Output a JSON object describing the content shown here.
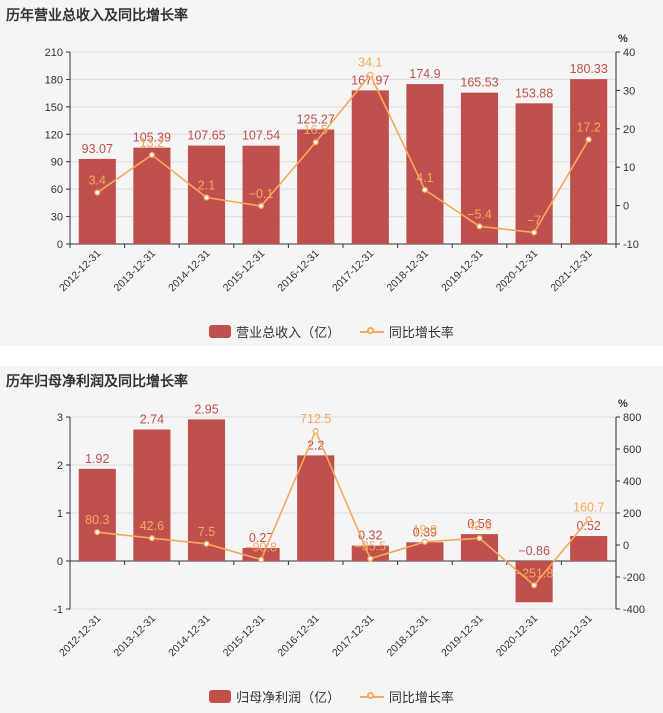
{
  "colors": {
    "bar": "#c0504d",
    "line": "#f5a95b",
    "axis": "#333333",
    "grid": "#dddddd",
    "background": "#f5f5f5"
  },
  "chart_data": [
    {
      "type": "bar",
      "title": "历年营业总收入及同比增长率",
      "categories": [
        "2012-12-31",
        "2013-12-31",
        "2014-12-31",
        "2015-12-31",
        "2016-12-31",
        "2017-12-31",
        "2018-12-31",
        "2019-12-31",
        "2020-12-31",
        "2021-12-31"
      ],
      "series": [
        {
          "name": "营业总收入（亿）",
          "type": "bar",
          "axis": "left",
          "values": [
            93.07,
            105.39,
            107.65,
            107.54,
            125.27,
            167.97,
            174.9,
            165.53,
            153.88,
            180.33
          ],
          "labels": [
            "93.07",
            "105.39",
            "107.65",
            "107.54",
            "125.27",
            "167.97",
            "174.9",
            "165.53",
            "153.88",
            "180.33"
          ]
        },
        {
          "name": "同比增长率",
          "type": "line",
          "axis": "right",
          "values": [
            3.4,
            13.2,
            2.1,
            -0.1,
            16.5,
            34.1,
            4.1,
            -5.4,
            -7,
            17.2
          ],
          "labels": [
            "3.4",
            "13.2",
            "2.1",
            "−0.1",
            "16.5",
            "34.1",
            "4.1",
            "−5.4",
            "−7",
            "17.2"
          ]
        }
      ],
      "y_left": {
        "min": 0,
        "max": 210,
        "ticks": [
          0,
          30,
          60,
          90,
          120,
          150,
          180,
          210
        ]
      },
      "y_right": {
        "min": -10,
        "max": 40,
        "ticks": [
          -10,
          0,
          10,
          20,
          30,
          40
        ],
        "unit": "%"
      },
      "grid": true,
      "legend": "bottom-center"
    },
    {
      "type": "bar",
      "title": "历年归母净利润及同比增长率",
      "categories": [
        "2012-12-31",
        "2013-12-31",
        "2014-12-31",
        "2015-12-31",
        "2016-12-31",
        "2017-12-31",
        "2018-12-31",
        "2019-12-31",
        "2020-12-31",
        "2021-12-31"
      ],
      "series": [
        {
          "name": "归母净利润（亿）",
          "type": "bar",
          "axis": "left",
          "values": [
            1.92,
            2.74,
            2.95,
            0.27,
            2.2,
            0.32,
            0.39,
            0.56,
            -0.86,
            0.52
          ],
          "labels": [
            "1.92",
            "2.74",
            "2.95",
            "0.27",
            "2.2",
            "0.32",
            "0.39",
            "0.56",
            "−0.86",
            "0.52"
          ]
        },
        {
          "name": "同比增长率",
          "type": "line",
          "axis": "right",
          "values": [
            80.3,
            42.6,
            7.5,
            -90.8,
            712.5,
            -85.5,
            19.8,
            42.6,
            -251.8,
            160.7
          ],
          "labels": [
            "80.3",
            "42.6",
            "7.5",
            "−90.8",
            "712.5",
            "−85.5",
            "19.8",
            "42.6",
            "−251.8",
            "160.7"
          ]
        }
      ],
      "y_left": {
        "min": -1,
        "max": 3,
        "ticks": [
          -1,
          0,
          1,
          2,
          3
        ]
      },
      "y_right": {
        "min": -400,
        "max": 800,
        "ticks": [
          -400,
          -200,
          0,
          200,
          400,
          600,
          800
        ],
        "unit": "%"
      },
      "grid": true,
      "legend": "bottom-center"
    }
  ],
  "legends": [
    {
      "bar_label": "营业总收入（亿）",
      "line_label": "同比增长率"
    },
    {
      "bar_label": "归母净利润（亿）",
      "line_label": "同比增长率"
    }
  ]
}
